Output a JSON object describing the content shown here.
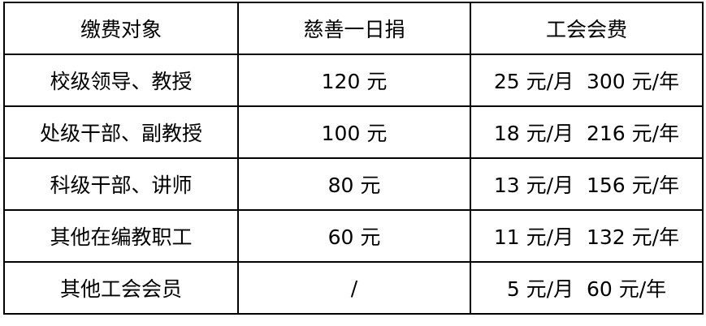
{
  "headers": [
    "缴费对象",
    "慈善一日捐",
    "工会会费"
  ],
  "rows": [
    [
      "校级领导、教授",
      "120 元",
      "25 元/月  300 元/年"
    ],
    [
      "处级干部、副教授",
      "100 元",
      "18 元/月  216 元/年"
    ],
    [
      "科级干部、讲师",
      "80 元",
      "13 元/月  156 元/年"
    ],
    [
      "其他在编教职工",
      "60 元",
      "11 元/月  132 元/年"
    ],
    [
      "其他工会会员",
      "/",
      "5 元/月  60 元/年"
    ]
  ]
}
